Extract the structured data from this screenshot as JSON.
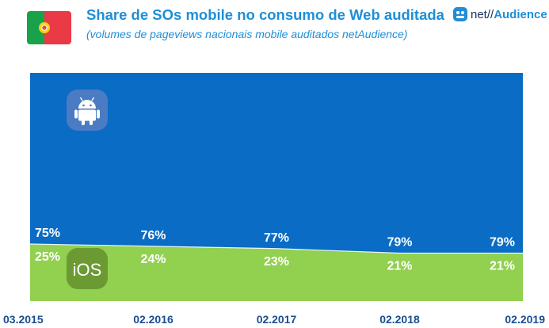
{
  "header": {
    "title": "Share de SOs mobile no consumo de Web auditada",
    "subtitle": "(volumes de pageviews nacionais mobile auditados netAudience)"
  },
  "brand": {
    "prefix": "net//",
    "name": "Audience"
  },
  "colors": {
    "android_area": "#0a6cc4",
    "ios_area": "#92d050",
    "title": "#1f8ed6",
    "flag_green": "#1aa24a",
    "flag_red": "#ea3a45",
    "icon_android_bg": "#4b7cc3",
    "icon_ios_bg": "#6b9a33",
    "axis_label": "#1a4e8f"
  },
  "icons": {
    "android": "android-robot",
    "ios": "iOS"
  },
  "chart_data": {
    "type": "area",
    "stacked": true,
    "categories": [
      "03.2015",
      "02.2016",
      "02.2017",
      "02.2018",
      "02.2019"
    ],
    "series": [
      {
        "name": "iOS",
        "values": [
          25,
          24,
          23,
          21,
          21
        ]
      },
      {
        "name": "Android",
        "values": [
          75,
          76,
          77,
          79,
          79
        ]
      }
    ],
    "ylim": [
      0,
      100
    ],
    "value_labels": {
      "Android": [
        "75%",
        "76%",
        "77%",
        "79%",
        "79%"
      ],
      "iOS": [
        "25%",
        "24%",
        "23%",
        "21%",
        "21%"
      ]
    },
    "grid": false,
    "legend": "icons-inside"
  }
}
